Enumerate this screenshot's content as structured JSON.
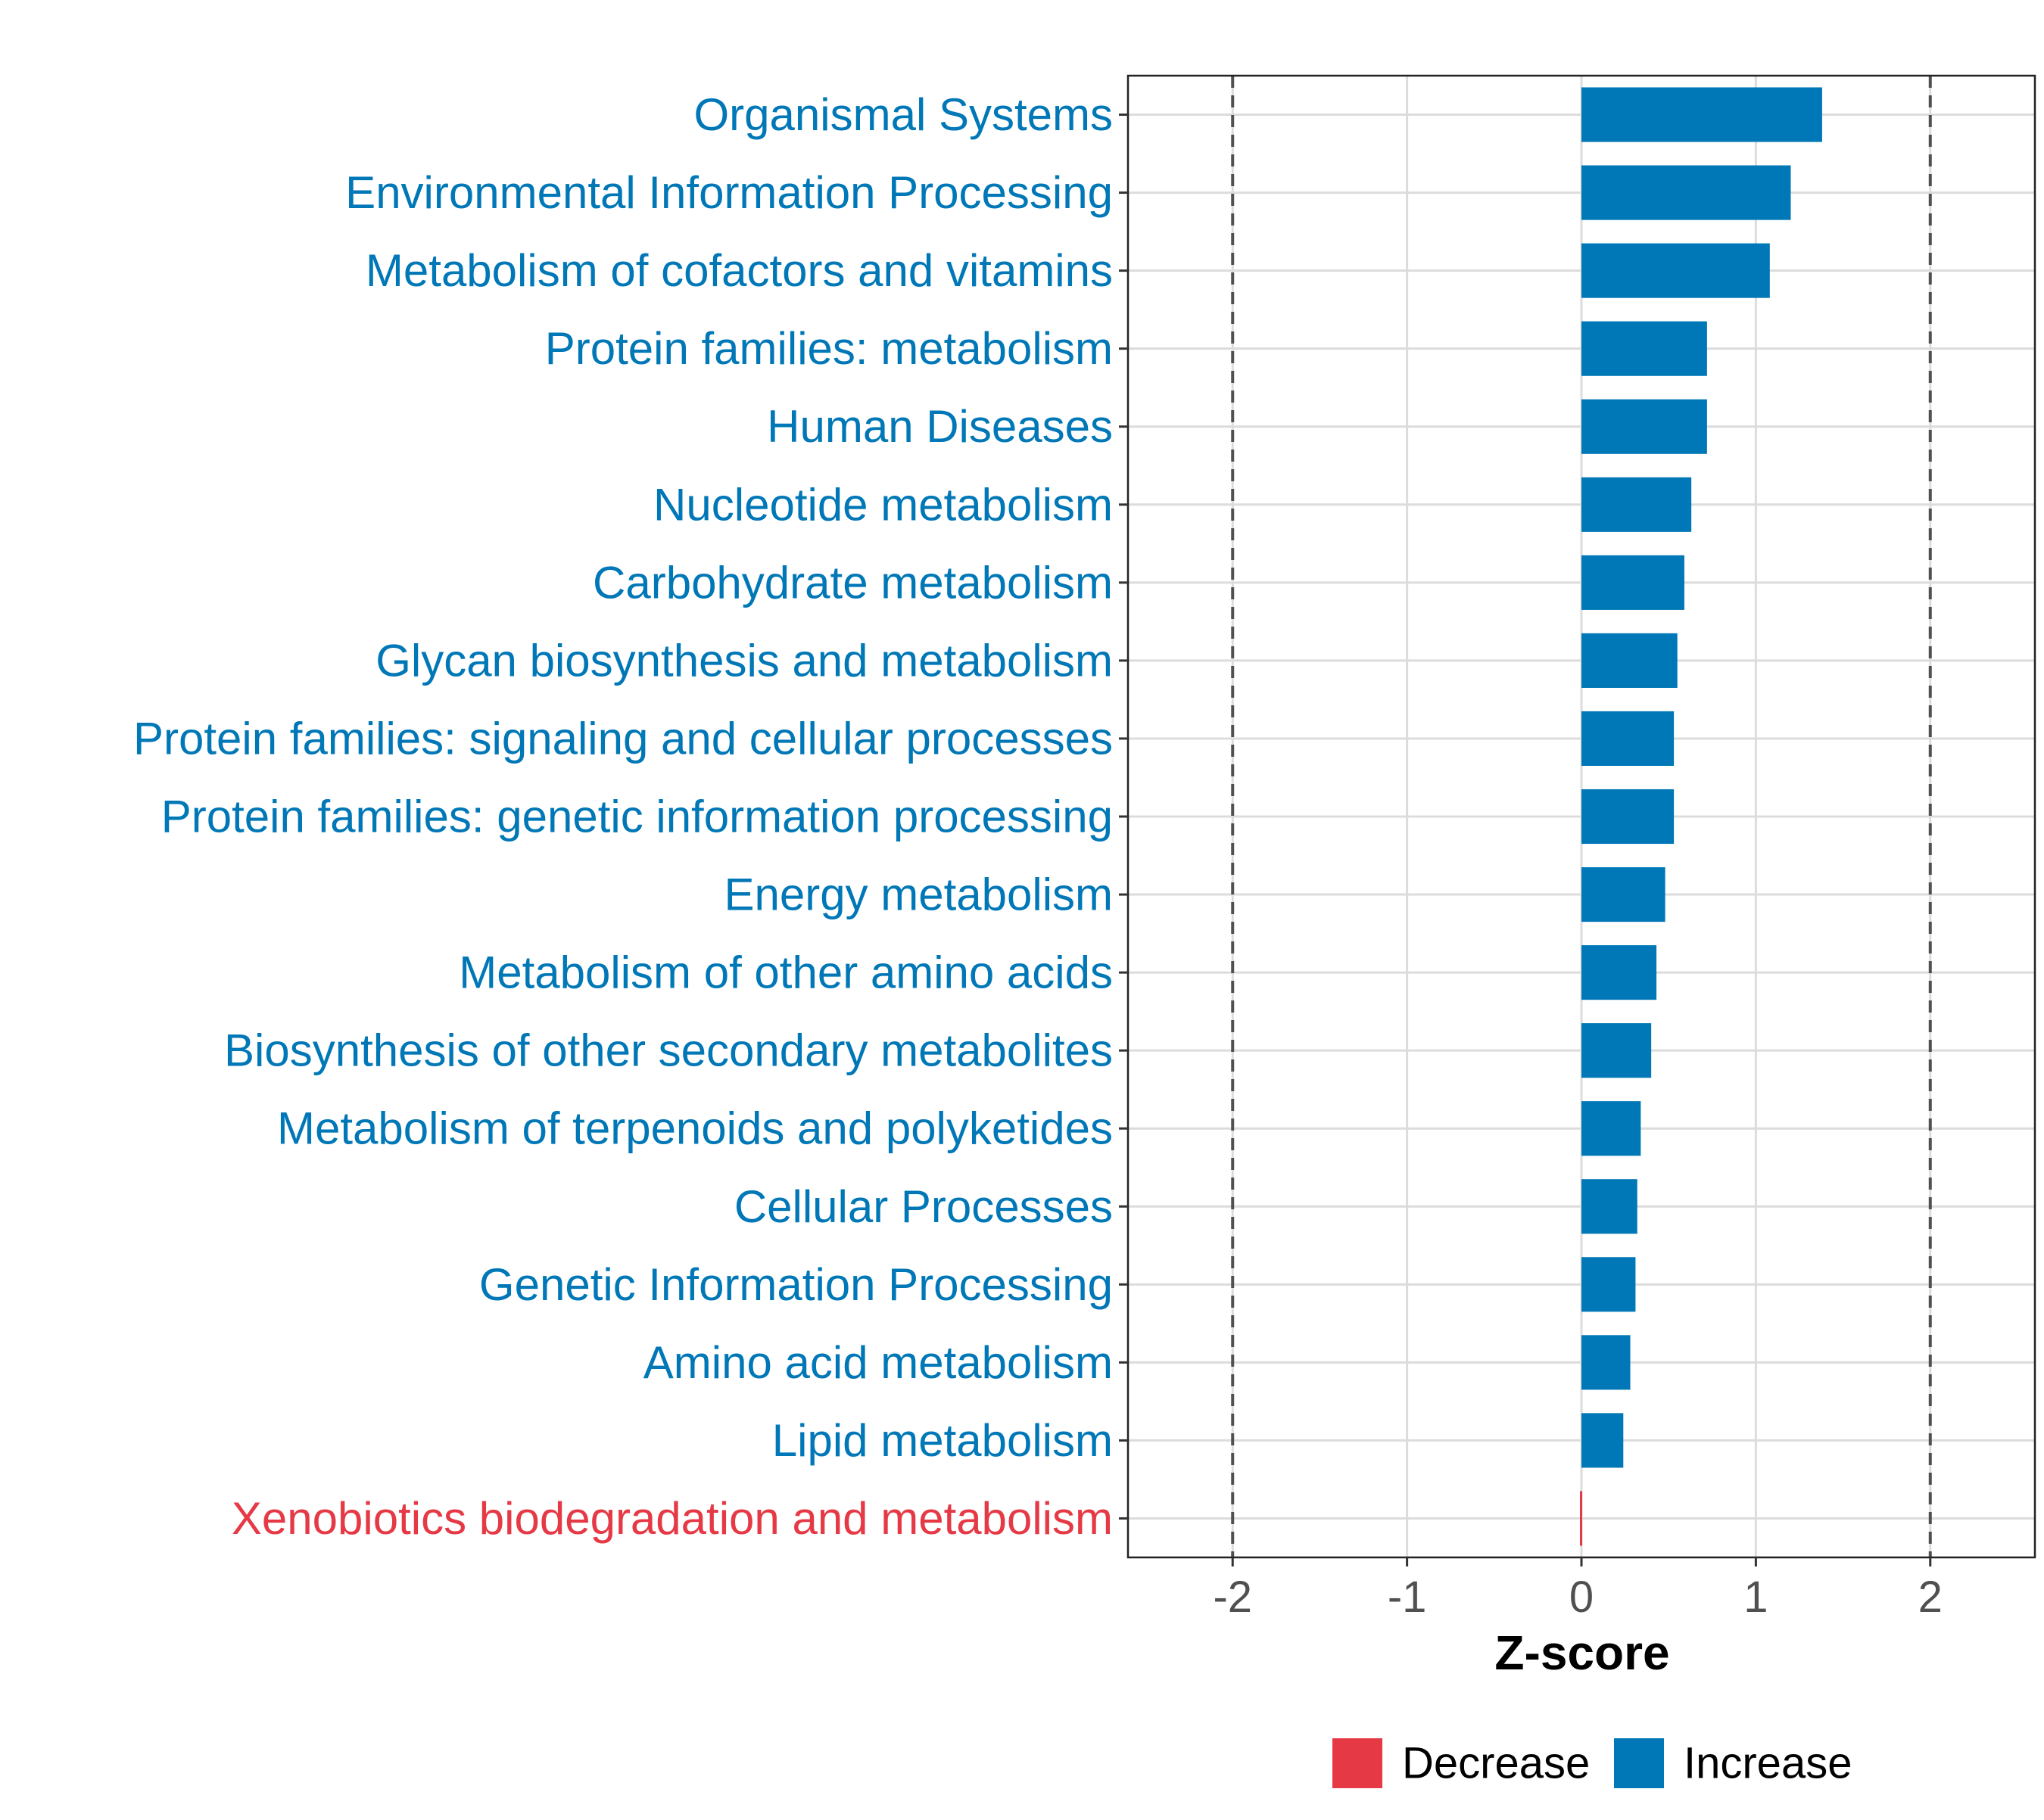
{
  "chart_data": {
    "type": "bar",
    "orientation": "horizontal",
    "title": "",
    "xlabel": "Z-score",
    "ylabel": "",
    "xlim": [
      -2.6,
      2.6
    ],
    "xticks": [
      -2,
      -1,
      0,
      1,
      2
    ],
    "xtick_labels": [
      "-2",
      "-1",
      "0",
      "1",
      "2"
    ],
    "reference_lines": [
      -2,
      2
    ],
    "grid": true,
    "categories": [
      "Organismal Systems",
      "Environmental Information Processing",
      "Metabolism of cofactors and vitamins",
      "Protein families: metabolism",
      "Human Diseases",
      "Nucleotide metabolism",
      "Carbohydrate metabolism",
      "Glycan biosynthesis and metabolism",
      "Protein families: signaling and cellular processes",
      "Protein families: genetic information processing",
      "Energy metabolism",
      "Metabolism of other amino acids",
      "Biosynthesis of other secondary metabolites",
      "Metabolism of terpenoids and polyketides",
      "Cellular Processes",
      "Genetic Information Processing",
      "Amino acid metabolism",
      "Lipid metabolism",
      "Xenobiotics biodegradation and metabolism"
    ],
    "values": [
      1.38,
      1.2,
      1.08,
      0.72,
      0.72,
      0.63,
      0.59,
      0.55,
      0.53,
      0.53,
      0.48,
      0.43,
      0.4,
      0.34,
      0.32,
      0.31,
      0.28,
      0.24,
      -0.01
    ],
    "groups": [
      "Increase",
      "Increase",
      "Increase",
      "Increase",
      "Increase",
      "Increase",
      "Increase",
      "Increase",
      "Increase",
      "Increase",
      "Increase",
      "Increase",
      "Increase",
      "Increase",
      "Increase",
      "Increase",
      "Increase",
      "Increase",
      "Decrease"
    ],
    "legend": {
      "position": "bottom",
      "entries": [
        {
          "label": "Decrease",
          "color": "#E63946"
        },
        {
          "label": "Increase",
          "color": "#0077B6"
        }
      ]
    },
    "colors": {
      "Increase": "#0077B6",
      "Decrease": "#E63946",
      "grid": "#DCDCDC",
      "reference_line": "#505050",
      "tick_label": "#505050",
      "axis_title": "#000000"
    }
  }
}
